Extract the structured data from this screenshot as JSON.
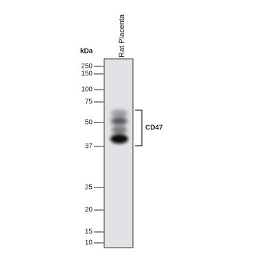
{
  "unit_label": "kDa",
  "lane_label": "Rat Placenta",
  "band_label": "CD47",
  "markers": [
    250,
    150,
    100,
    75,
    50,
    37,
    25,
    20,
    15,
    10
  ]
}
